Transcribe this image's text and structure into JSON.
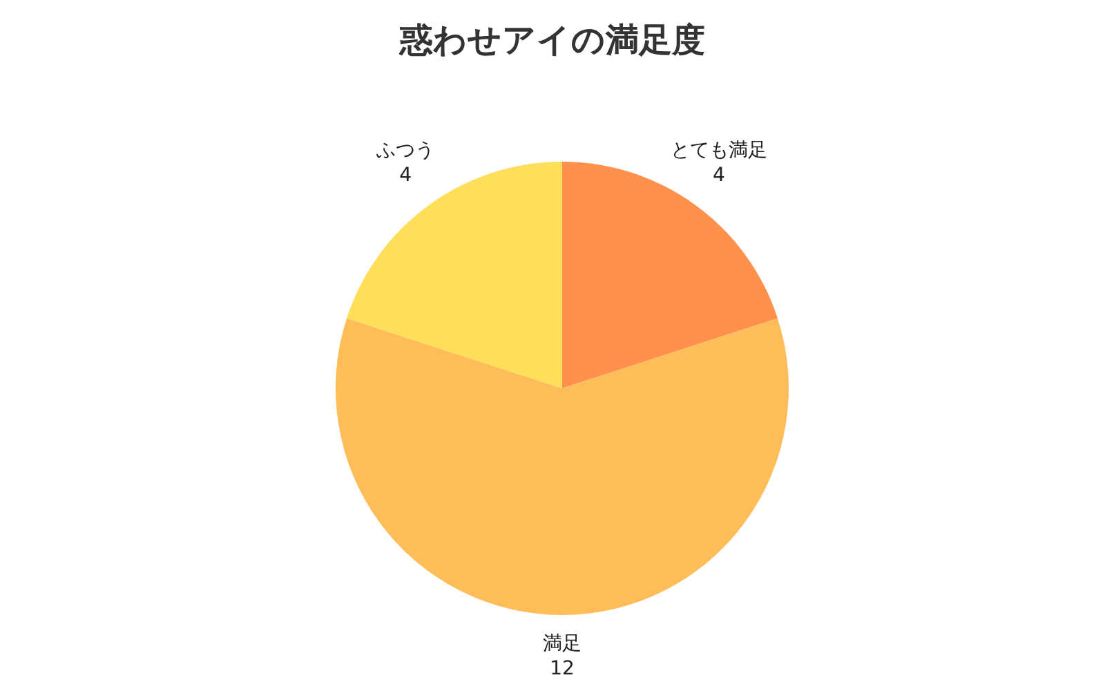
{
  "chart_data": {
    "type": "pie",
    "title": "惑わせアイの満足度",
    "categories": [
      "とても満足",
      "満足",
      "ふつう"
    ],
    "values": [
      4,
      12,
      4
    ],
    "colors": [
      "#ff914d",
      "#ffbd59",
      "#ffde59"
    ],
    "data_labels": true
  }
}
